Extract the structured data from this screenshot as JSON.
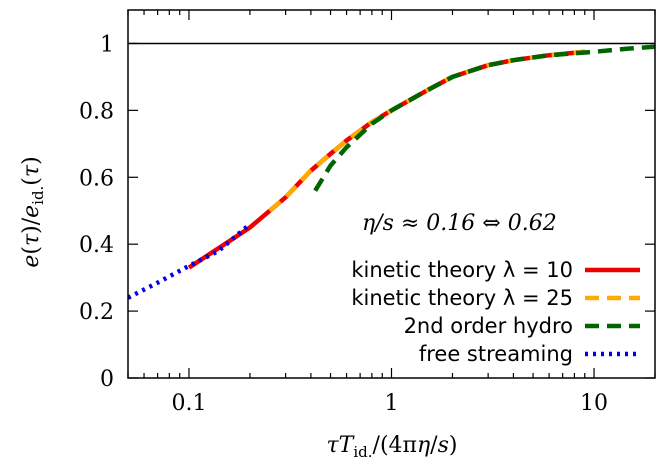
{
  "chart_data": {
    "type": "line",
    "xscale": "log",
    "xlim": [
      0.05,
      20
    ],
    "ylim": [
      0,
      1.1
    ],
    "xticks": [
      {
        "value": 0.1,
        "label": "0.1"
      },
      {
        "value": 1,
        "label": "1"
      },
      {
        "value": 10,
        "label": "10"
      }
    ],
    "yticks": [
      {
        "value": 0,
        "label": "0"
      },
      {
        "value": 0.2,
        "label": "0.2"
      },
      {
        "value": 0.4,
        "label": "0.4"
      },
      {
        "value": 0.6,
        "label": "0.6"
      },
      {
        "value": 0.8,
        "label": "0.8"
      },
      {
        "value": 1,
        "label": "1"
      }
    ],
    "xlabel": "τT_id./(4πη/s)",
    "ylabel": "e(τ)/e_id.(τ)",
    "annotation": "η/s ≈ 0.16 ⇔ 0.62",
    "reference_line_y": 1,
    "legend_position": "bottom-right",
    "series": [
      {
        "name": "kinetic theory λ = 10",
        "color": "#ee0000",
        "style": "solid",
        "points": [
          [
            0.1,
            0.33
          ],
          [
            0.15,
            0.4
          ],
          [
            0.2,
            0.45
          ],
          [
            0.3,
            0.54
          ],
          [
            0.4,
            0.62
          ],
          [
            0.5,
            0.67
          ],
          [
            0.6,
            0.71
          ],
          [
            0.8,
            0.765
          ],
          [
            1.0,
            0.8
          ],
          [
            1.5,
            0.86
          ],
          [
            2,
            0.9
          ],
          [
            3,
            0.935
          ],
          [
            4,
            0.95
          ],
          [
            6,
            0.965
          ],
          [
            9,
            0.975
          ]
        ]
      },
      {
        "name": "kinetic theory λ = 25",
        "color": "#ffaa00",
        "style": "dashed",
        "points": [
          [
            0.25,
            0.5
          ],
          [
            0.3,
            0.54
          ],
          [
            0.4,
            0.62
          ],
          [
            0.5,
            0.67
          ],
          [
            0.6,
            0.71
          ],
          [
            0.8,
            0.765
          ],
          [
            1.0,
            0.8
          ],
          [
            1.5,
            0.86
          ],
          [
            2,
            0.9
          ],
          [
            3,
            0.935
          ],
          [
            4,
            0.95
          ],
          [
            6,
            0.965
          ],
          [
            9,
            0.975
          ]
        ]
      },
      {
        "name": "2nd order hydro",
        "color": "#006400",
        "style": "dashed",
        "points": [
          [
            0.42,
            0.56
          ],
          [
            0.5,
            0.635
          ],
          [
            0.6,
            0.69
          ],
          [
            0.8,
            0.76
          ],
          [
            1.0,
            0.8
          ],
          [
            1.5,
            0.86
          ],
          [
            2,
            0.9
          ],
          [
            3,
            0.935
          ],
          [
            4,
            0.95
          ],
          [
            6,
            0.965
          ],
          [
            10,
            0.975
          ],
          [
            15,
            0.985
          ],
          [
            20,
            0.99
          ]
        ]
      },
      {
        "name": "free streaming",
        "color": "#0000ee",
        "style": "dotted",
        "points": [
          [
            0.05,
            0.24
          ],
          [
            0.07,
            0.285
          ],
          [
            0.1,
            0.335
          ],
          [
            0.14,
            0.38
          ],
          [
            0.2,
            0.46
          ]
        ]
      }
    ]
  }
}
